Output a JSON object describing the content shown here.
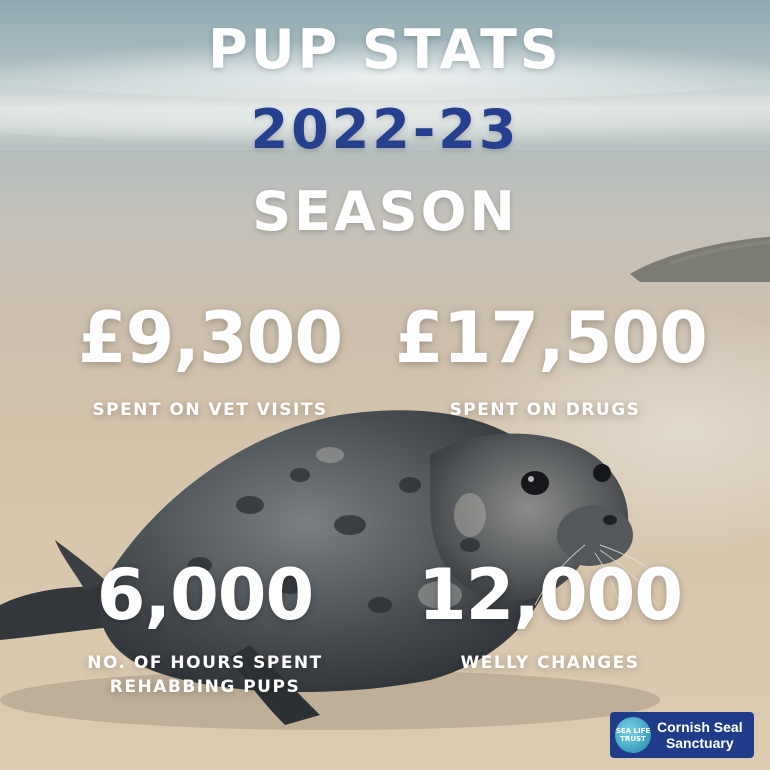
{
  "title": {
    "line1": "PUP STATS",
    "line2": "2022-23",
    "line3": "SEASON"
  },
  "stats": [
    {
      "value": "£9,300",
      "label": "SPENT ON VET VISITS"
    },
    {
      "value": "£17,500",
      "label": "SPENT ON DRUGS"
    },
    {
      "value": "6,000",
      "label_line1": "NO. OF HOURS SPENT",
      "label_line2": "REHABBING PUPS"
    },
    {
      "value": "12,000",
      "label": "WELLY CHANGES"
    }
  ],
  "logo": {
    "badge_text": "SEA LIFE TRUST",
    "line1": "Cornish Seal",
    "line2": "Sanctuary"
  },
  "colors": {
    "title_accent": "#24408e",
    "text": "#ffffff",
    "logo_background": "#1f3c8a"
  }
}
